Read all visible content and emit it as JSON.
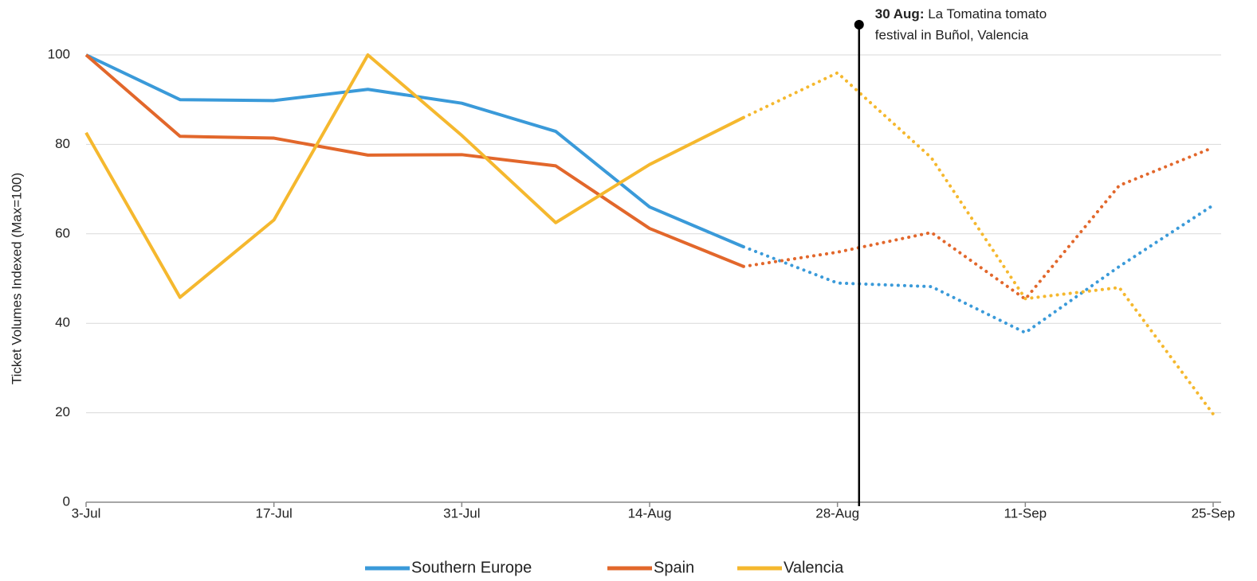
{
  "chart_data": {
    "type": "line",
    "y_label": "Ticket Volumes Indexed (Max=100)",
    "categories": [
      "3-Jul",
      null,
      "17-Jul",
      null,
      "31-Jul",
      null,
      "14-Aug",
      null,
      "28-Aug",
      null,
      "11-Sep",
      null,
      "25-Sep"
    ],
    "segment_styles": [
      "solid",
      "solid",
      "solid",
      "solid",
      "solid",
      "solid",
      "solid",
      "dotted",
      "dotted",
      "dotted",
      "dotted",
      "dotted"
    ],
    "series": [
      {
        "name": "Southern Europe",
        "color": "#3a9ad9",
        "values": [
          100,
          90,
          89.8,
          92.3,
          89.2,
          82.9,
          66,
          57.1,
          49,
          48.2,
          37.9,
          52.7,
          66.4
        ]
      },
      {
        "name": "Spain",
        "color": "#e2672b",
        "values": [
          100,
          81.8,
          81.4,
          77.6,
          77.7,
          75.2,
          61.2,
          52.7,
          55.9,
          60.3,
          45.4,
          70.8,
          79.3
        ]
      },
      {
        "name": "Valencia",
        "color": "#f5b82e",
        "values": [
          82.6,
          45.8,
          63.1,
          100,
          82,
          62.5,
          75.5,
          86,
          96,
          77,
          45.5,
          48,
          19.7
        ]
      }
    ],
    "ylim": [
      0,
      100
    ],
    "yticks": [
      0,
      20,
      40,
      60,
      80,
      100
    ],
    "grid": true,
    "legend": "bottom",
    "annotation": {
      "label": "30 Aug:",
      "text_lines": [
        "La Tomatina tomato",
        "festival in Buñol, Valencia"
      ]
    }
  }
}
